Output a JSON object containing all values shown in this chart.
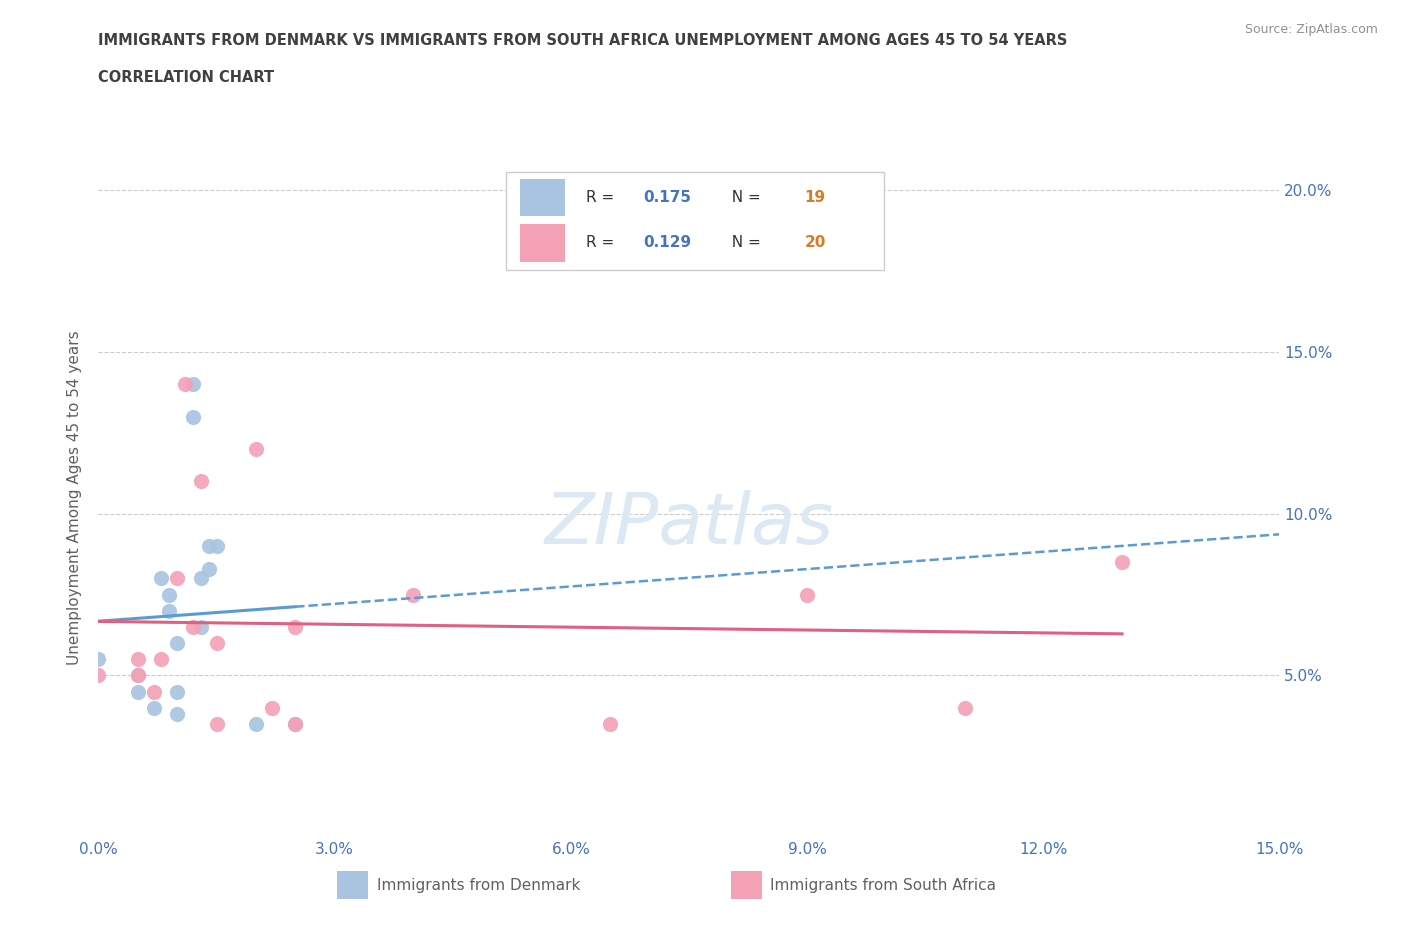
{
  "title_line1": "IMMIGRANTS FROM DENMARK VS IMMIGRANTS FROM SOUTH AFRICA UNEMPLOYMENT AMONG AGES 45 TO 54 YEARS",
  "title_line2": "CORRELATION CHART",
  "source": "Source: ZipAtlas.com",
  "ylabel": "Unemployment Among Ages 45 to 54 years",
  "xlim": [
    0.0,
    0.15
  ],
  "ylim": [
    0.0,
    0.21
  ],
  "xticks": [
    0.0,
    0.03,
    0.06,
    0.09,
    0.12,
    0.15
  ],
  "yticks": [
    0.05,
    0.1,
    0.15,
    0.2
  ],
  "ytick_labels": [
    "5.0%",
    "10.0%",
    "15.0%",
    "20.0%"
  ],
  "xtick_labels": [
    "0.0%",
    "3.0%",
    "6.0%",
    "9.0%",
    "12.0%",
    "15.0%"
  ],
  "denmark_color": "#a8c4e0",
  "south_africa_color": "#f4a0b5",
  "denmark_R": 0.175,
  "denmark_N": 19,
  "south_africa_R": 0.129,
  "south_africa_N": 20,
  "denmark_points_x": [
    0.0,
    0.005,
    0.005,
    0.007,
    0.008,
    0.009,
    0.009,
    0.01,
    0.01,
    0.01,
    0.012,
    0.012,
    0.013,
    0.013,
    0.014,
    0.014,
    0.015,
    0.02,
    0.025
  ],
  "denmark_points_y": [
    0.055,
    0.05,
    0.045,
    0.04,
    0.08,
    0.075,
    0.07,
    0.038,
    0.06,
    0.045,
    0.14,
    0.13,
    0.065,
    0.08,
    0.083,
    0.09,
    0.09,
    0.035,
    0.035
  ],
  "south_africa_points_x": [
    0.0,
    0.005,
    0.005,
    0.007,
    0.008,
    0.01,
    0.011,
    0.012,
    0.013,
    0.015,
    0.015,
    0.02,
    0.022,
    0.025,
    0.025,
    0.04,
    0.065,
    0.09,
    0.11,
    0.13
  ],
  "south_africa_points_y": [
    0.05,
    0.05,
    0.055,
    0.045,
    0.055,
    0.08,
    0.14,
    0.065,
    0.11,
    0.06,
    0.035,
    0.12,
    0.04,
    0.035,
    0.065,
    0.075,
    0.035,
    0.075,
    0.04,
    0.085
  ],
  "denmark_line_color": "#5b9bd5",
  "south_africa_line_color": "#e06080",
  "background_color": "#ffffff",
  "grid_color": "#cccccc",
  "title_color": "#404040",
  "legend_R_color": "#4472c4",
  "legend_N_color": "#e07820",
  "watermark_color": "#dce8f4",
  "tick_color": "#4472c4",
  "ylabel_color": "#606060",
  "source_color": "#909090",
  "bottom_legend_color": "#606060"
}
